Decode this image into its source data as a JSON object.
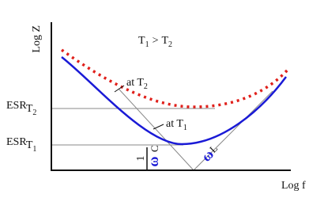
{
  "axes": {
    "y_label": "Log Z",
    "x_label": "Log f"
  },
  "relation": {
    "left": "T",
    "left_sub": "1",
    "op": ">",
    "right": "T",
    "right_sub": "2"
  },
  "curves": [
    {
      "label": "at T",
      "sub": "2"
    },
    {
      "label": "at T",
      "sub": "1"
    }
  ],
  "levels": [
    {
      "label": "ESR",
      "sub": "T",
      "sub2": "2"
    },
    {
      "label": "ESR",
      "sub": "T",
      "sub2": "1"
    }
  ],
  "asymptotes": {
    "capacitive": {
      "num": "1",
      "den": "ω",
      "den_sub": "C"
    },
    "inductive": {
      "symbol": "ω",
      "sub": "L"
    }
  }
}
